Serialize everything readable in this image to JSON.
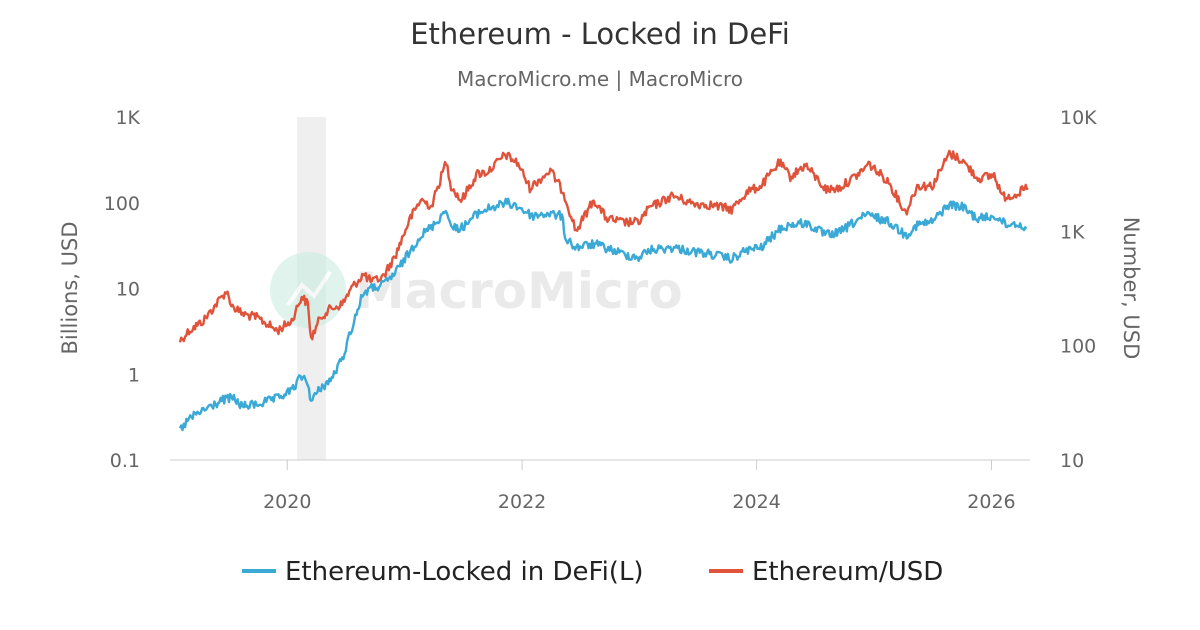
{
  "title": "Ethereum - Locked in DeFi",
  "subtitle": "MacroMicro.me | MacroMicro",
  "watermark": "MacroMicro",
  "chart_data": {
    "type": "line",
    "x_range": [
      "2019-01-01",
      "2026-05-01"
    ],
    "x_ticks": [
      "2020",
      "2022",
      "2024",
      "2026"
    ],
    "shaded_region": [
      "2020-02-01",
      "2020-04-30"
    ],
    "grid": false,
    "legend_position": "bottom",
    "left_axis": {
      "label": "Billions, USD",
      "scale": "log",
      "range": [
        0.1,
        1000
      ],
      "ticks": [
        0.1,
        1,
        10,
        100,
        1000
      ],
      "tick_labels": [
        "0.1",
        "1",
        "10",
        "100",
        "1K"
      ]
    },
    "right_axis": {
      "label": "Number, USD",
      "scale": "log",
      "range": [
        10,
        10000
      ],
      "ticks": [
        10,
        100,
        1000,
        10000
      ],
      "tick_labels": [
        "10",
        "100",
        "1K",
        "10K"
      ]
    },
    "series": [
      {
        "name": "Ethereum-Locked in DeFi(L)",
        "axis": "left",
        "color": "#3aa9d6",
        "points": [
          [
            "2019-02-01",
            0.22
          ],
          [
            "2019-03-01",
            0.3
          ],
          [
            "2019-04-15",
            0.38
          ],
          [
            "2019-06-15",
            0.5
          ],
          [
            "2019-07-15",
            0.53
          ],
          [
            "2019-08-15",
            0.42
          ],
          [
            "2019-10-01",
            0.45
          ],
          [
            "2019-12-01",
            0.52
          ],
          [
            "2020-01-15",
            0.65
          ],
          [
            "2020-02-15",
            0.95
          ],
          [
            "2020-03-05",
            0.8
          ],
          [
            "2020-03-15",
            0.48
          ],
          [
            "2020-04-15",
            0.7
          ],
          [
            "2020-05-15",
            0.85
          ],
          [
            "2020-06-20",
            1.5
          ],
          [
            "2020-07-20",
            3.5
          ],
          [
            "2020-08-25",
            9.0
          ],
          [
            "2020-09-20",
            10.0
          ],
          [
            "2020-10-25",
            11.0
          ],
          [
            "2020-12-01",
            15.0
          ],
          [
            "2021-01-01",
            22.0
          ],
          [
            "2021-02-15",
            40.0
          ],
          [
            "2021-04-01",
            55.0
          ],
          [
            "2021-05-12",
            85.0
          ],
          [
            "2021-05-25",
            50.0
          ],
          [
            "2021-07-01",
            52.0
          ],
          [
            "2021-08-15",
            75.0
          ],
          [
            "2021-09-15",
            85.0
          ],
          [
            "2021-11-15",
            100.0
          ],
          [
            "2021-12-20",
            90.0
          ],
          [
            "2022-02-01",
            70.0
          ],
          [
            "2022-03-20",
            75.0
          ],
          [
            "2022-05-05",
            70.0
          ],
          [
            "2022-05-15",
            40.0
          ],
          [
            "2022-06-15",
            30.0
          ],
          [
            "2022-08-15",
            33.0
          ],
          [
            "2022-09-15",
            30.0
          ],
          [
            "2022-11-15",
            25.0
          ],
          [
            "2022-12-30",
            23.0
          ],
          [
            "2023-02-01",
            28.0
          ],
          [
            "2023-04-15",
            30.0
          ],
          [
            "2023-06-15",
            27.0
          ],
          [
            "2023-08-15",
            25.0
          ],
          [
            "2023-10-15",
            22.0
          ],
          [
            "2023-12-01",
            28.0
          ],
          [
            "2024-01-15",
            30.0
          ],
          [
            "2024-03-15",
            50.0
          ],
          [
            "2024-04-15",
            55.0
          ],
          [
            "2024-06-01",
            58.0
          ],
          [
            "2024-08-05",
            42.0
          ],
          [
            "2024-09-15",
            45.0
          ],
          [
            "2024-11-15",
            65.0
          ],
          [
            "2024-12-15",
            72.0
          ],
          [
            "2025-02-15",
            60.0
          ],
          [
            "2025-04-09",
            42.0
          ],
          [
            "2025-05-15",
            55.0
          ],
          [
            "2025-07-01",
            60.0
          ],
          [
            "2025-08-20",
            95.0
          ],
          [
            "2025-10-01",
            90.0
          ],
          [
            "2025-11-20",
            65.0
          ],
          [
            "2026-01-15",
            70.0
          ],
          [
            "2026-02-15",
            55.0
          ],
          [
            "2026-03-20",
            58.0
          ],
          [
            "2026-04-20",
            50.0
          ]
        ]
      },
      {
        "name": "Ethereum/USD",
        "axis": "right",
        "color": "#e0533b",
        "points": [
          [
            "2019-02-01",
            110
          ],
          [
            "2019-03-01",
            135
          ],
          [
            "2019-04-15",
            165
          ],
          [
            "2019-06-25",
            300
          ],
          [
            "2019-07-15",
            220
          ],
          [
            "2019-08-15",
            190
          ],
          [
            "2019-10-01",
            175
          ],
          [
            "2019-12-01",
            135
          ],
          [
            "2020-01-15",
            165
          ],
          [
            "2020-02-15",
            270
          ],
          [
            "2020-03-05",
            230
          ],
          [
            "2020-03-15",
            115
          ],
          [
            "2020-04-15",
            180
          ],
          [
            "2020-05-15",
            210
          ],
          [
            "2020-06-20",
            230
          ],
          [
            "2020-07-20",
            320
          ],
          [
            "2020-08-25",
            420
          ],
          [
            "2020-09-20",
            360
          ],
          [
            "2020-10-25",
            400
          ],
          [
            "2020-12-01",
            600
          ],
          [
            "2021-01-15",
            1250
          ],
          [
            "2021-02-20",
            1900
          ],
          [
            "2021-03-25",
            1650
          ],
          [
            "2021-05-10",
            4100
          ],
          [
            "2021-05-25",
            2500
          ],
          [
            "2021-06-25",
            1850
          ],
          [
            "2021-08-15",
            3200
          ],
          [
            "2021-09-15",
            3300
          ],
          [
            "2021-11-10",
            4700
          ],
          [
            "2021-12-20",
            3900
          ],
          [
            "2022-01-25",
            2400
          ],
          [
            "2022-03-30",
            3400
          ],
          [
            "2022-05-10",
            2200
          ],
          [
            "2022-06-18",
            1000
          ],
          [
            "2022-08-12",
            1900
          ],
          [
            "2022-09-20",
            1300
          ],
          [
            "2022-11-10",
            1200
          ],
          [
            "2022-12-30",
            1200
          ],
          [
            "2023-02-01",
            1600
          ],
          [
            "2023-04-15",
            2050
          ],
          [
            "2023-06-15",
            1750
          ],
          [
            "2023-08-15",
            1700
          ],
          [
            "2023-10-15",
            1550
          ],
          [
            "2023-12-01",
            2200
          ],
          [
            "2024-01-15",
            2500
          ],
          [
            "2024-03-12",
            4000
          ],
          [
            "2024-04-15",
            3000
          ],
          [
            "2024-06-01",
            3800
          ],
          [
            "2024-08-05",
            2300
          ],
          [
            "2024-09-15",
            2400
          ],
          [
            "2024-11-15",
            3200
          ],
          [
            "2024-12-15",
            3900
          ],
          [
            "2025-02-15",
            2700
          ],
          [
            "2025-04-09",
            1450
          ],
          [
            "2025-05-15",
            2500
          ],
          [
            "2025-07-01",
            2500
          ],
          [
            "2025-08-23",
            4800
          ],
          [
            "2025-10-01",
            4200
          ],
          [
            "2025-11-20",
            2900
          ],
          [
            "2026-01-10",
            3100
          ],
          [
            "2026-02-05",
            2000
          ],
          [
            "2026-03-15",
            2100
          ],
          [
            "2026-04-25",
            2400
          ]
        ]
      }
    ]
  }
}
